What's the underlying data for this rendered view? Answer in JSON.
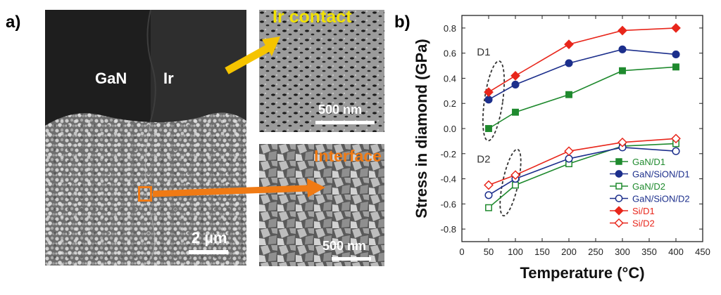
{
  "panel_a": {
    "letter": "a)",
    "main_labels": {
      "gan": "GaN",
      "ir": "Ir",
      "scale": "2 µm"
    },
    "inset_top": {
      "title": "Ir contact",
      "scale": "500 nm",
      "title_color": "#f2e200"
    },
    "inset_bottom": {
      "title": "Interface",
      "scale": "500 nm",
      "title_color": "#f07a14"
    },
    "arrow_colors": {
      "yellow": "#f5c400",
      "orange": "#f07a14"
    }
  },
  "panel_b": {
    "letter": "b)"
  },
  "chart_data": {
    "type": "line",
    "xlabel": "Temperature (°C)",
    "ylabel": "Stress in diamond (GPa)",
    "xlim": [
      0,
      450
    ],
    "ylim": [
      -0.9,
      0.9
    ],
    "xticks": [
      0,
      50,
      100,
      150,
      200,
      250,
      300,
      350,
      400,
      450
    ],
    "yticks": [
      -0.8,
      -0.6,
      -0.4,
      -0.2,
      0.0,
      0.2,
      0.4,
      0.6,
      0.8
    ],
    "ytick_labels": [
      "-0.8",
      "-0.6",
      "-0.4",
      "-0.2",
      "0.0",
      "0.2",
      "0.4",
      "0.6",
      "0.8"
    ],
    "grid": false,
    "legend_position": "lower-right",
    "annotations": [
      {
        "text": "D1",
        "x": 28,
        "y": 0.58
      },
      {
        "text": "D2",
        "x": 28,
        "y": -0.27
      }
    ],
    "series": [
      {
        "name": "GaN/D1",
        "color": "#1f8a2e",
        "marker": "square",
        "filled": true,
        "x": [
          50,
          100,
          200,
          300,
          400
        ],
        "y": [
          0.0,
          0.13,
          0.27,
          0.46,
          0.49
        ]
      },
      {
        "name": "GaN/SiON/D1",
        "color": "#1c2f8c",
        "marker": "circle",
        "filled": true,
        "x": [
          50,
          100,
          200,
          300,
          400
        ],
        "y": [
          0.23,
          0.35,
          0.52,
          0.63,
          0.59
        ]
      },
      {
        "name": "GaN/D2",
        "color": "#1f8a2e",
        "marker": "square",
        "filled": false,
        "x": [
          50,
          100,
          200,
          300,
          400
        ],
        "y": [
          -0.63,
          -0.45,
          -0.28,
          -0.14,
          -0.12
        ]
      },
      {
        "name": "GaN/SiON/D2",
        "color": "#1c2f8c",
        "marker": "circle",
        "filled": false,
        "x": [
          50,
          100,
          200,
          300,
          400
        ],
        "y": [
          -0.53,
          -0.4,
          -0.24,
          -0.15,
          -0.18
        ]
      },
      {
        "name": "Si/D1",
        "color": "#e8261b",
        "marker": "diamond",
        "filled": true,
        "x": [
          50,
          100,
          200,
          300,
          400
        ],
        "y": [
          0.29,
          0.42,
          0.67,
          0.78,
          0.8
        ]
      },
      {
        "name": "Si/D2",
        "color": "#e8261b",
        "marker": "diamond",
        "filled": false,
        "x": [
          50,
          100,
          200,
          300,
          400
        ],
        "y": [
          -0.45,
          -0.37,
          -0.18,
          -0.11,
          -0.08
        ]
      }
    ]
  }
}
